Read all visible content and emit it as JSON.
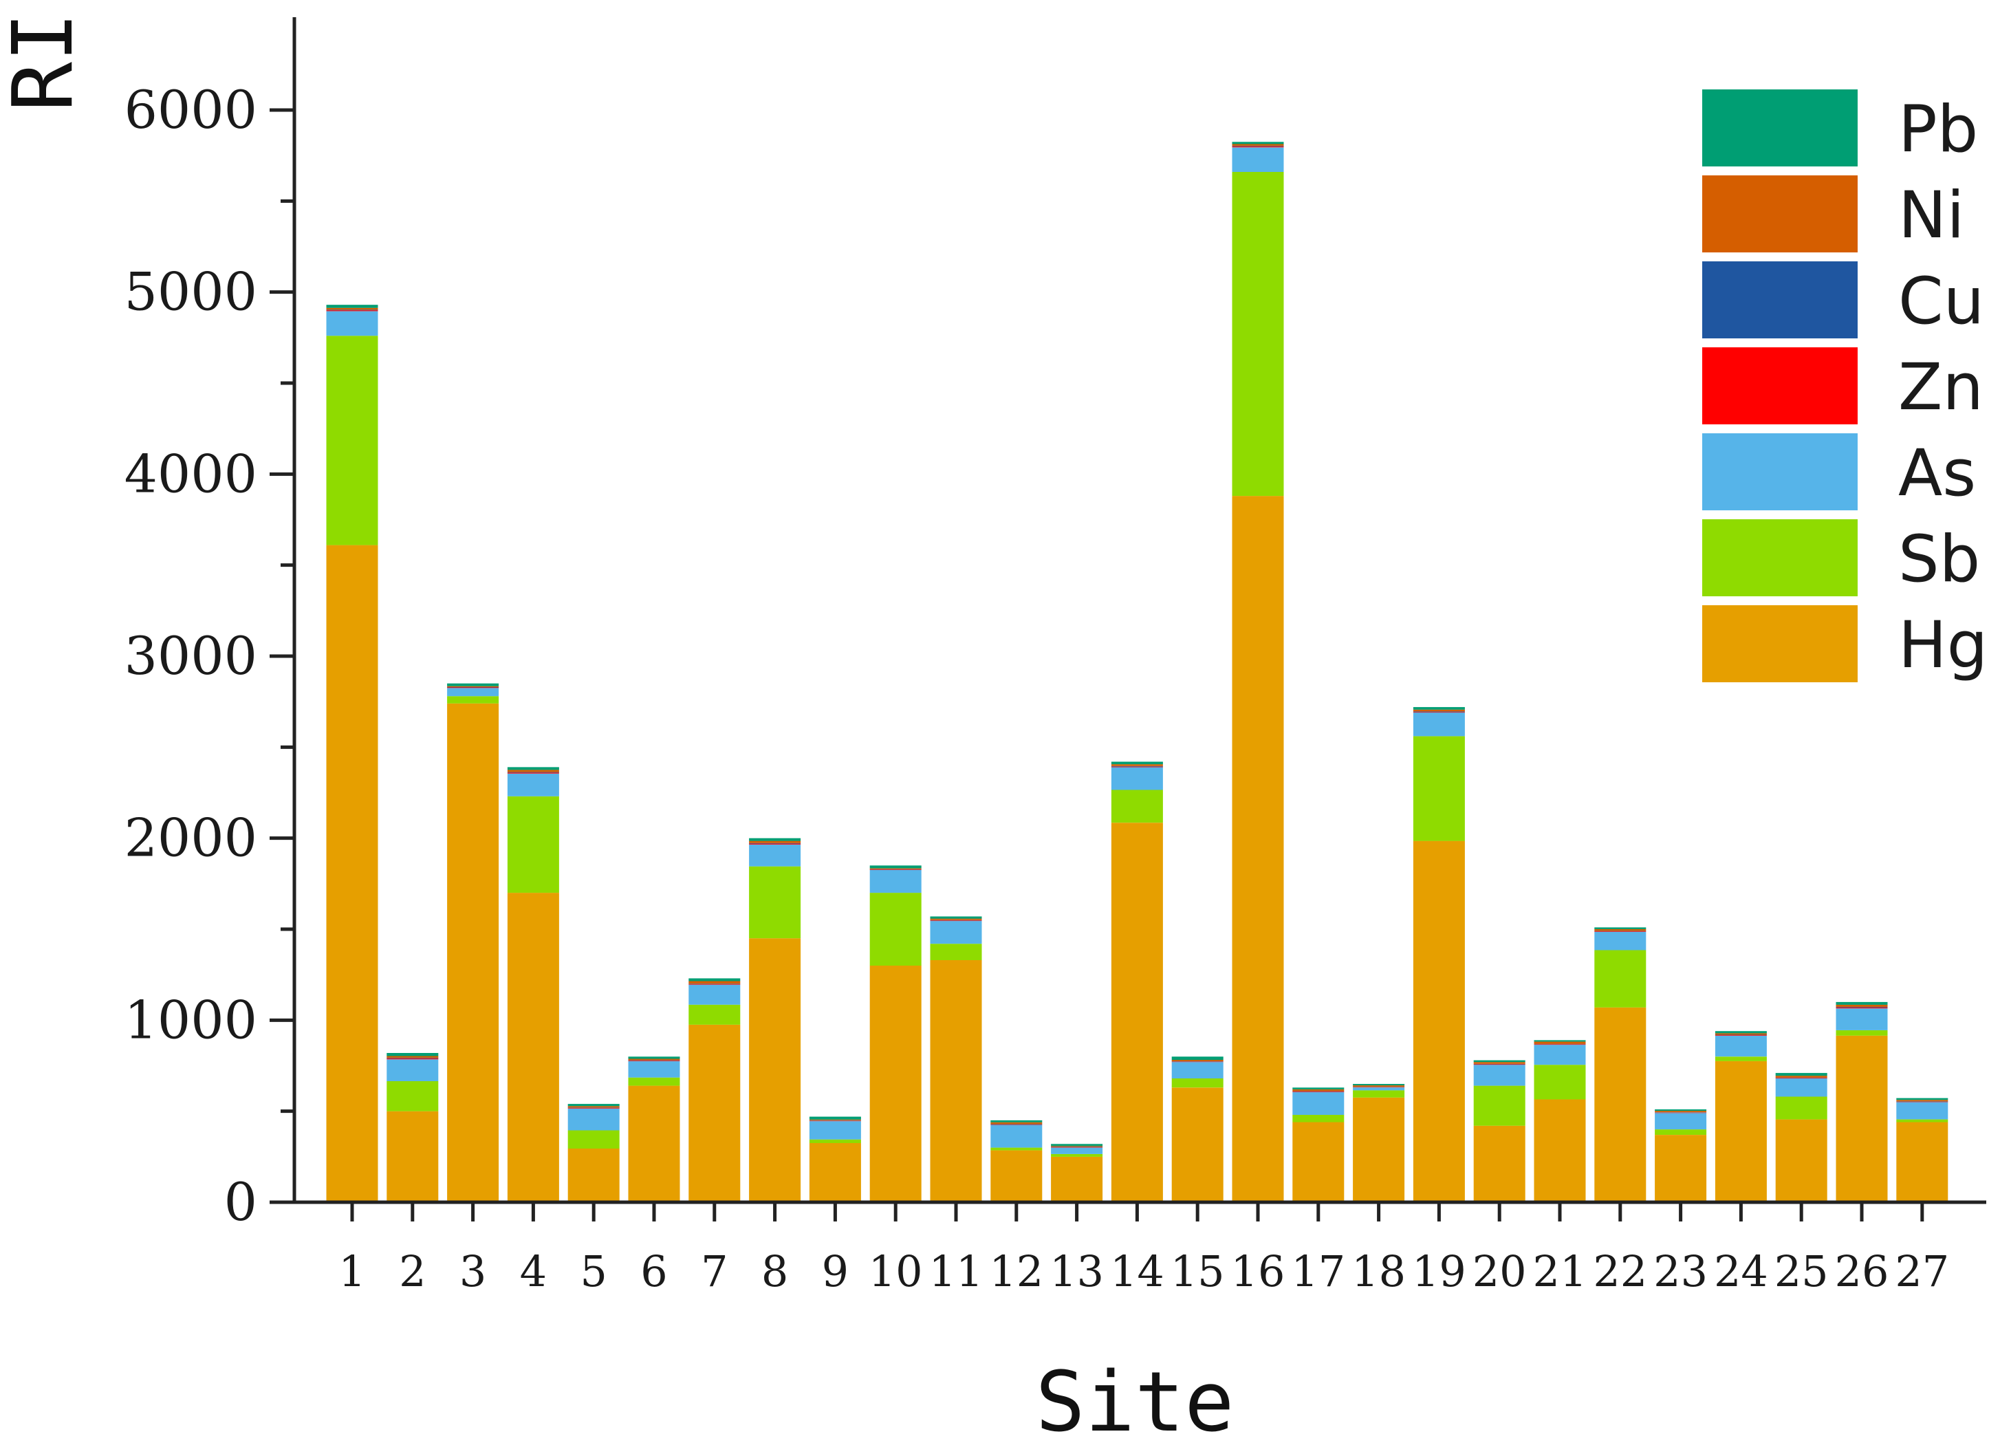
{
  "chart_data": {
    "type": "bar",
    "stacked": true,
    "title": "",
    "xlabel": "Site",
    "ylabel": "RI",
    "ylim": [
      0,
      6500
    ],
    "yticks": [
      0,
      1000,
      2000,
      3000,
      4000,
      5000,
      6000
    ],
    "categories": [
      "1",
      "2",
      "3",
      "4",
      "5",
      "6",
      "7",
      "8",
      "9",
      "10",
      "11",
      "12",
      "13",
      "14",
      "15",
      "16",
      "17",
      "18",
      "19",
      "20",
      "21",
      "22",
      "23",
      "24",
      "25",
      "26",
      "27"
    ],
    "series": [
      {
        "name": "Hg",
        "color": "#e69f00",
        "values": [
          3610,
          500,
          2740,
          1700,
          295,
          640,
          975,
          1450,
          325,
          1300,
          1330,
          285,
          250,
          2085,
          630,
          3880,
          440,
          575,
          1985,
          420,
          565,
          1070,
          370,
          775,
          455,
          915,
          440
        ]
      },
      {
        "name": "Sb",
        "color": "#8fdb00",
        "values": [
          1150,
          165,
          40,
          530,
          100,
          45,
          110,
          395,
          20,
          400,
          90,
          15,
          15,
          180,
          50,
          1780,
          40,
          40,
          575,
          220,
          190,
          315,
          30,
          25,
          125,
          30,
          15
        ]
      },
      {
        "name": "As",
        "color": "#56b4e9",
        "values": [
          135,
          120,
          45,
          125,
          120,
          90,
          110,
          120,
          100,
          125,
          125,
          125,
          35,
          125,
          90,
          135,
          125,
          15,
          130,
          115,
          110,
          100,
          90,
          115,
          100,
          120,
          95
        ]
      },
      {
        "name": "Zn",
        "color": "#ff0000",
        "values": [
          5,
          5,
          3,
          5,
          3,
          3,
          3,
          5,
          2,
          3,
          3,
          2,
          2,
          3,
          2,
          5,
          3,
          2,
          3,
          3,
          3,
          3,
          2,
          3,
          3,
          5,
          2
        ]
      },
      {
        "name": "Cu",
        "color": "#1f56a0",
        "values": [
          3,
          3,
          2,
          3,
          2,
          2,
          2,
          3,
          2,
          2,
          2,
          2,
          2,
          3,
          2,
          3,
          2,
          2,
          3,
          2,
          2,
          2,
          2,
          2,
          2,
          3,
          2
        ]
      },
      {
        "name": "Ni",
        "color": "#d55e00",
        "values": [
          10,
          10,
          5,
          12,
          8,
          8,
          15,
          12,
          5,
          5,
          8,
          10,
          5,
          10,
          8,
          10,
          10,
          8,
          10,
          10,
          12,
          10,
          8,
          8,
          10,
          12,
          8
        ]
      },
      {
        "name": "Pb",
        "color": "#009e73",
        "values": [
          17,
          17,
          15,
          15,
          12,
          12,
          15,
          15,
          16,
          15,
          12,
          11,
          11,
          14,
          18,
          12,
          10,
          8,
          14,
          10,
          8,
          10,
          8,
          12,
          15,
          15,
          10
        ]
      }
    ],
    "legend": {
      "placement": "top-right",
      "order": [
        "Pb",
        "Ni",
        "Cu",
        "Zn",
        "As",
        "Sb",
        "Hg"
      ]
    }
  }
}
